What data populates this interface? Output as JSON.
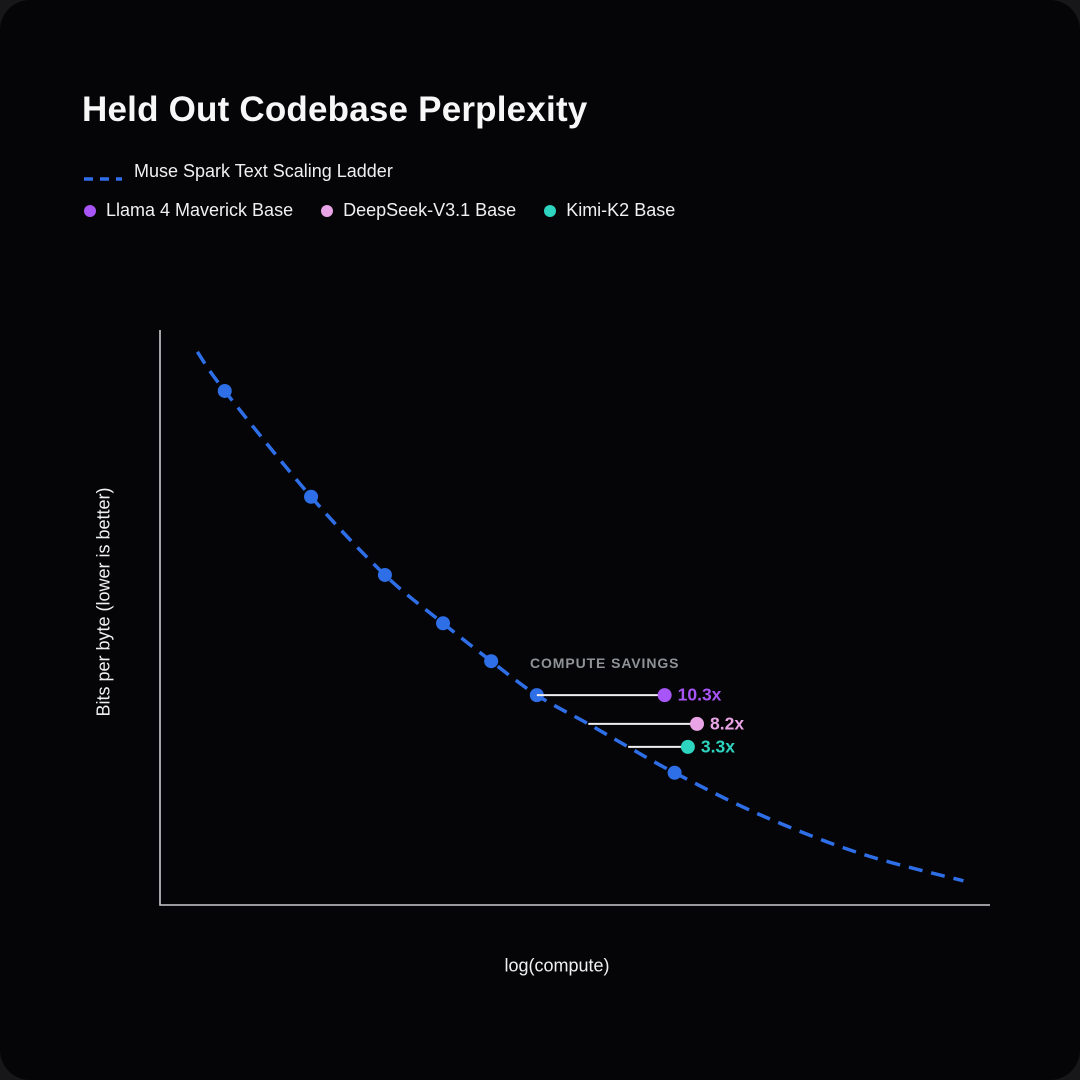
{
  "header": {
    "title": "Held Out Codebase Perplexity"
  },
  "legend": {
    "ladder": {
      "label": "Muse Spark Text Scaling Ladder",
      "style": "dashed",
      "color": "#2e6fe8"
    },
    "models": [
      {
        "label": "Llama 4 Maverick Base",
        "color": "#a855f7"
      },
      {
        "label": "DeepSeek-V3.1 Base",
        "color": "#e8a4e4"
      },
      {
        "label": "Kimi-K2 Base",
        "color": "#2dd4bf"
      }
    ]
  },
  "chart_data": {
    "type": "line",
    "title": "Held Out Codebase Perplexity",
    "xlabel": "log(compute)",
    "ylabel": "Bits per byte (lower is better)",
    "axes": {
      "tick_labels_visible": false,
      "color": "#c9ccd1",
      "grid": false
    },
    "note": "Source chart has no numeric tick labels; point coordinates are normalized fractions of the plot area (x: 0=left→1=right, y: 0=top→1=bottom).",
    "series": [
      {
        "name": "Muse Spark Text Scaling Ladder",
        "style": "dashed",
        "color": "#2e6fe8",
        "points": [
          [
            0.045,
            0.038
          ],
          [
            0.078,
            0.106
          ],
          [
            0.182,
            0.29
          ],
          [
            0.271,
            0.426
          ],
          [
            0.341,
            0.51
          ],
          [
            0.399,
            0.576
          ],
          [
            0.454,
            0.635
          ],
          [
            0.516,
            0.685
          ],
          [
            0.564,
            0.725
          ],
          [
            0.62,
            0.77
          ],
          [
            0.723,
            0.843
          ],
          [
            0.843,
            0.91
          ],
          [
            0.968,
            0.958
          ]
        ],
        "markers": [
          [
            0.078,
            0.106
          ],
          [
            0.182,
            0.29
          ],
          [
            0.271,
            0.426
          ],
          [
            0.341,
            0.51
          ],
          [
            0.399,
            0.576
          ],
          [
            0.454,
            0.635
          ],
          [
            0.62,
            0.77
          ]
        ]
      }
    ],
    "compute_savings": {
      "label": "COMPUTE SAVINGS",
      "line_color": "#efefef",
      "items": [
        {
          "model": "Llama 4 Maverick Base",
          "factor": "10.3x",
          "color": "#a855f7",
          "y": 0.635,
          "x_start": 0.454,
          "x_end": 0.608
        },
        {
          "model": "DeepSeek-V3.1 Base",
          "factor": "8.2x",
          "color": "#e8a4e4",
          "y": 0.685,
          "x_start": 0.516,
          "x_end": 0.647
        },
        {
          "model": "Kimi-K2 Base",
          "factor": "3.3x",
          "color": "#2dd4bf",
          "y": 0.725,
          "x_start": 0.564,
          "x_end": 0.636
        }
      ]
    }
  }
}
